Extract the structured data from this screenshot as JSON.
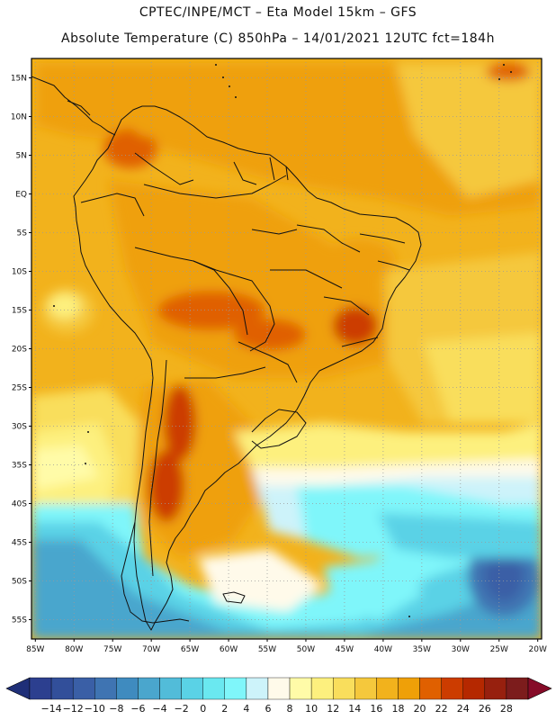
{
  "header": {
    "line1": "CPTEC/INPE/MCT –  Eta Model 15km – GFS",
    "line2": "Absolute Temperature (C) 850hPa – 14/01/2021 12UTC fct=184h"
  },
  "map": {
    "lat_labels": [
      "15N",
      "10N",
      "5N",
      "EQ",
      "5S",
      "10S",
      "15S",
      "20S",
      "25S",
      "30S",
      "35S",
      "40S",
      "45S",
      "50S",
      "55S"
    ],
    "lon_labels": [
      "85W",
      "80W",
      "75W",
      "70W",
      "65W",
      "60W",
      "55W",
      "50W",
      "45W",
      "40W",
      "35W",
      "30W",
      "25W",
      "20W"
    ],
    "lat_range": [
      -57.5,
      17.5
    ],
    "lon_range": [
      -85.5,
      -19.5
    ]
  },
  "colorbar": {
    "ticks": [
      "-14",
      "-12",
      "-10",
      "-8",
      "-6",
      "-4",
      "-2",
      "0",
      "2",
      "4",
      "6",
      "8",
      "10",
      "12",
      "14",
      "16",
      "18",
      "20",
      "22",
      "24",
      "26",
      "28"
    ],
    "colors": [
      "#2c3f8f",
      "#324f9a",
      "#3a5fa6",
      "#3f74b2",
      "#3f8bbf",
      "#4aa6cd",
      "#52bcd9",
      "#5ad2e6",
      "#6ae8f0",
      "#7ff6fa",
      "#cdf3fa",
      "#fffaea",
      "#fffba8",
      "#fdf07e",
      "#f9de5c",
      "#f5c83c",
      "#f2b21c",
      "#efa008",
      "#e06000",
      "#cc3c00",
      "#b52800",
      "#97200e",
      "#7c1c1c"
    ],
    "under_color": "#1f2f78",
    "over_color": "#860b28"
  }
}
